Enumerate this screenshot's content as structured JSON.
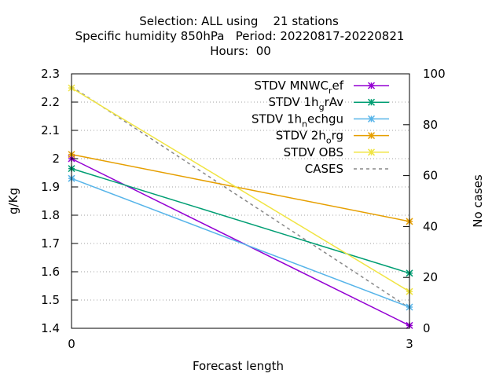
{
  "chart_data": {
    "type": "line",
    "title_lines": [
      "Selection: ALL using    21 stations",
      "Specific humidity 850hPa   Period: 20220817-20220821",
      "Hours:  00"
    ],
    "xlabel": "Forecast length",
    "ylabel": "g/Kg",
    "y2label": "No cases",
    "x": [
      0,
      3
    ],
    "xlim": [
      0,
      3
    ],
    "xticks": [
      "0",
      "3"
    ],
    "ylim": [
      1.4,
      2.3
    ],
    "yticks": [
      "1.4",
      "1.5",
      "1.6",
      "1.7",
      "1.8",
      "1.9",
      "2",
      "2.1",
      "2.2",
      "2.3"
    ],
    "y2lim": [
      0,
      100
    ],
    "y2ticks": [
      "0",
      "20",
      "40",
      "60",
      "80",
      "100"
    ],
    "grid": "horizontal dotted",
    "legend_position": "top-right",
    "series": [
      {
        "legend_parts": [
          "STDV MNWC",
          "r",
          "ef"
        ],
        "color": "#9400d3",
        "axis": "y",
        "marker": "x",
        "values": [
          2.0,
          1.41
        ]
      },
      {
        "legend_parts": [
          "STDV 1h",
          "g",
          "rAv"
        ],
        "color": "#009e73",
        "axis": "y",
        "marker": "x",
        "values": [
          1.965,
          1.595
        ]
      },
      {
        "legend_parts": [
          "STDV 1h",
          "n",
          "echgu"
        ],
        "color": "#56b4e9",
        "axis": "y",
        "marker": "x",
        "values": [
          1.93,
          1.475
        ]
      },
      {
        "legend_parts": [
          "STDV 2h",
          "o",
          "rg"
        ],
        "color": "#e69f00",
        "axis": "y",
        "marker": "x",
        "values": [
          2.015,
          1.778
        ]
      },
      {
        "legend_parts": [
          "STDV OBS",
          "",
          ""
        ],
        "color": "#f0e442",
        "axis": "y",
        "marker": "x",
        "values": [
          2.25,
          1.53
        ]
      },
      {
        "legend_parts": [
          "CASES",
          "",
          ""
        ],
        "color": "#888888",
        "axis": "y2",
        "marker": "none",
        "dashed": true,
        "values": [
          95,
          8
        ]
      }
    ]
  }
}
